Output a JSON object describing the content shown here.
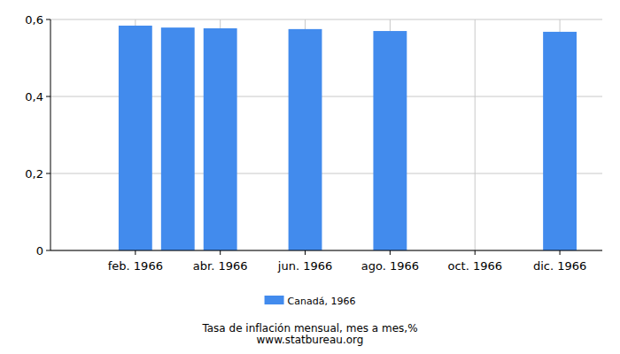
{
  "chart_data": {
    "type": "bar",
    "title": "Tasa de inflación mensual, mes a mes,%",
    "subtitle": "www.statbureau.org",
    "categories": [
      null,
      "feb. 1966",
      null,
      "abr. 1966",
      null,
      "jun. 1966",
      null,
      "ago. 1966",
      null,
      "oct. 1966",
      null,
      "dic. 1966"
    ],
    "series": [
      {
        "name": "Canadá, 1966",
        "color": "#428bed",
        "values": [
          null,
          0.584,
          0.579,
          0.577,
          null,
          0.575,
          null,
          0.57,
          null,
          null,
          null,
          0.568
        ]
      }
    ],
    "ylim": [
      0,
      0.6
    ],
    "yticks": [
      0,
      {
        "value": 0.2,
        "label": "0,2"
      },
      {
        "value": 0.4,
        "label": "0,4"
      },
      {
        "value": 0.6,
        "label": "0,6"
      }
    ],
    "grid": true,
    "legend": "bottom"
  }
}
